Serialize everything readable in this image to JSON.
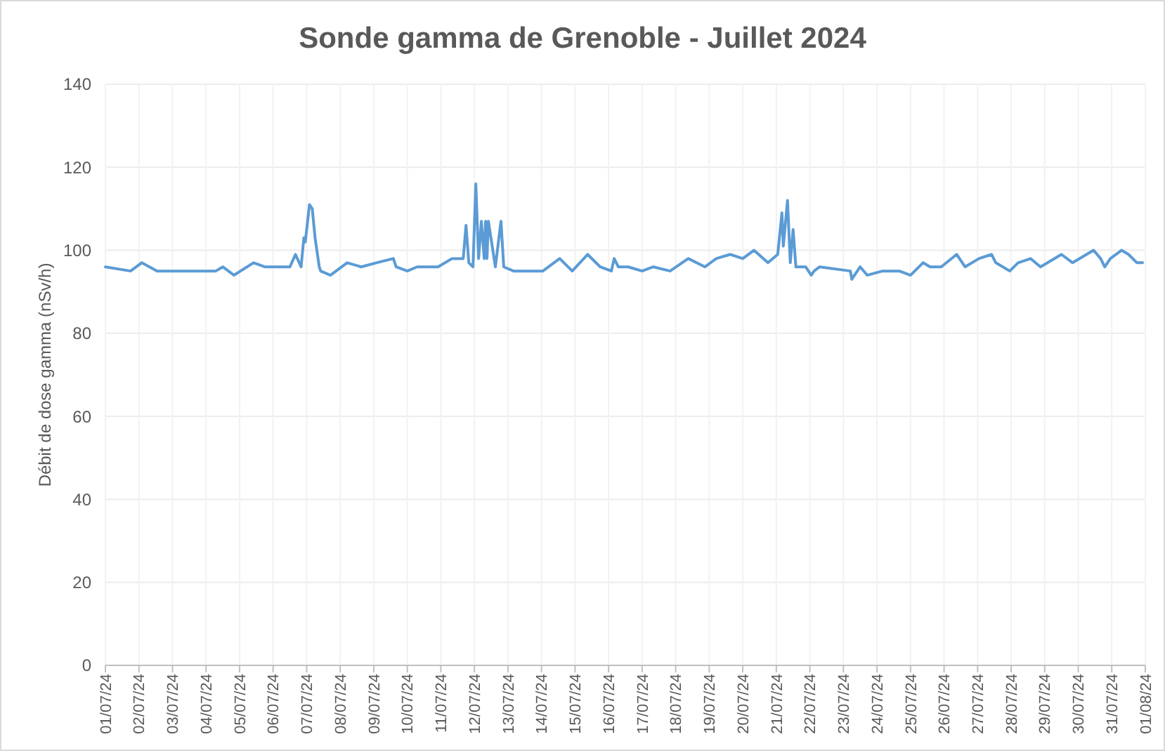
{
  "chart_data": {
    "type": "line",
    "title": "Sonde gamma de Grenoble - Juillet 2024",
    "ylabel": "Débit de dose gamma (nSv/h)",
    "x": [
      "2024-07-01T00:00",
      "2024-07-01T18:00",
      "2024-07-02T02:00",
      "2024-07-02T13:00",
      "2024-07-03T07:00",
      "2024-07-03T17:00",
      "2024-07-04T07:00",
      "2024-07-04T12:00",
      "2024-07-04T20:00",
      "2024-07-05T10:00",
      "2024-07-05T18:00",
      "2024-07-06T02:00",
      "2024-07-06T09:00",
      "2024-07-06T12:00",
      "2024-07-06T16:00",
      "2024-07-06T20:00",
      "2024-07-06T22:00",
      "2024-07-06T23:00",
      "2024-07-07T02:00",
      "2024-07-07T04:00",
      "2024-07-07T06:00",
      "2024-07-07T09:00",
      "2024-07-07T10:00",
      "2024-07-07T17:00",
      "2024-07-08T05:00",
      "2024-07-08T15:00",
      "2024-07-09T02:00",
      "2024-07-09T14:00",
      "2024-07-09T16:00",
      "2024-07-10T00:00",
      "2024-07-10T07:00",
      "2024-07-10T22:00",
      "2024-07-11T08:00",
      "2024-07-11T16:00",
      "2024-07-11T18:00",
      "2024-07-11T20:00",
      "2024-07-11T23:00",
      "2024-07-12T01:00",
      "2024-07-12T03:00",
      "2024-07-12T05:00",
      "2024-07-12T07:00",
      "2024-07-12T08:00",
      "2024-07-12T09:00",
      "2024-07-12T10:00",
      "2024-07-12T15:00",
      "2024-07-12T19:00",
      "2024-07-12T21:00",
      "2024-07-13T04:00",
      "2024-07-13T12:00",
      "2024-07-13T17:00",
      "2024-07-14T01:00",
      "2024-07-14T13:00",
      "2024-07-14T22:00",
      "2024-07-15T09:00",
      "2024-07-15T18:00",
      "2024-07-16T02:00",
      "2024-07-16T04:00",
      "2024-07-16T07:00",
      "2024-07-16T14:00",
      "2024-07-17T00:00",
      "2024-07-17T08:00",
      "2024-07-17T20:00",
      "2024-07-18T09:00",
      "2024-07-18T21:00",
      "2024-07-19T05:00",
      "2024-07-19T15:00",
      "2024-07-20T00:00",
      "2024-07-20T08:00",
      "2024-07-20T18:00",
      "2024-07-21T01:00",
      "2024-07-21T04:00",
      "2024-07-21T05:00",
      "2024-07-21T08:00",
      "2024-07-21T10:00",
      "2024-07-21T12:00",
      "2024-07-21T14:00",
      "2024-07-21T21:00",
      "2024-07-22T01:00",
      "2024-07-22T03:00",
      "2024-07-22T07:00",
      "2024-07-23T05:00",
      "2024-07-23T06:00",
      "2024-07-23T12:00",
      "2024-07-23T17:00",
      "2024-07-24T04:00",
      "2024-07-24T16:00",
      "2024-07-25T00:00",
      "2024-07-25T09:00",
      "2024-07-25T14:00",
      "2024-07-25T22:00",
      "2024-07-26T09:00",
      "2024-07-26T15:00",
      "2024-07-27T01:00",
      "2024-07-27T10:00",
      "2024-07-27T13:00",
      "2024-07-27T23:00",
      "2024-07-28T05:00",
      "2024-07-28T14:00",
      "2024-07-28T21:00",
      "2024-07-29T12:00",
      "2024-07-29T20:00",
      "2024-07-30T11:00",
      "2024-07-30T16:00",
      "2024-07-30T19:00",
      "2024-07-30T23:00",
      "2024-07-31T07:00",
      "2024-07-31T12:00",
      "2024-07-31T18:00",
      "2024-07-31T22:00"
    ],
    "series": [
      {
        "color": "#5b9bd5",
        "values": [
          96,
          95,
          97,
          95,
          95,
          95,
          95,
          96,
          94,
          97,
          96,
          96,
          96,
          96,
          99,
          96,
          103,
          102,
          111,
          110,
          103,
          96,
          95,
          94,
          97,
          96,
          97,
          98,
          96,
          95,
          96,
          96,
          98,
          98,
          106,
          97,
          96,
          116,
          98,
          107,
          98,
          107,
          98,
          107,
          96,
          107,
          96,
          95,
          95,
          95,
          95,
          98,
          95,
          99,
          96,
          95,
          98,
          96,
          96,
          95,
          96,
          95,
          98,
          96,
          98,
          99,
          98,
          100,
          97,
          99,
          109,
          101,
          112,
          97,
          105,
          96,
          96,
          94,
          95,
          96,
          95,
          93,
          96,
          94,
          95,
          95,
          94,
          97,
          96,
          96,
          99,
          96,
          98,
          99,
          97,
          95,
          97,
          98,
          96,
          99,
          97,
          100,
          98,
          96,
          98,
          100,
          99,
          97,
          97
        ]
      }
    ],
    "xlim": [
      "2024-07-01",
      "2024-08-01"
    ],
    "xticks": [
      {
        "value": "2024-07-01",
        "label": "01/07/24"
      },
      {
        "value": "2024-07-02",
        "label": "02/07/24"
      },
      {
        "value": "2024-07-03",
        "label": "03/07/24"
      },
      {
        "value": "2024-07-04",
        "label": "04/07/24"
      },
      {
        "value": "2024-07-05",
        "label": "05/07/24"
      },
      {
        "value": "2024-07-06",
        "label": "06/07/24"
      },
      {
        "value": "2024-07-07",
        "label": "07/07/24"
      },
      {
        "value": "2024-07-08",
        "label": "08/07/24"
      },
      {
        "value": "2024-07-09",
        "label": "09/07/24"
      },
      {
        "value": "2024-07-10",
        "label": "10/07/24"
      },
      {
        "value": "2024-07-11",
        "label": "11/07/24"
      },
      {
        "value": "2024-07-12",
        "label": "12/07/24"
      },
      {
        "value": "2024-07-13",
        "label": "13/07/24"
      },
      {
        "value": "2024-07-14",
        "label": "14/07/24"
      },
      {
        "value": "2024-07-15",
        "label": "15/07/24"
      },
      {
        "value": "2024-07-16",
        "label": "16/07/24"
      },
      {
        "value": "2024-07-17",
        "label": "17/07/24"
      },
      {
        "value": "2024-07-18",
        "label": "18/07/24"
      },
      {
        "value": "2024-07-19",
        "label": "19/07/24"
      },
      {
        "value": "2024-07-20",
        "label": "20/07/24"
      },
      {
        "value": "2024-07-21",
        "label": "21/07/24"
      },
      {
        "value": "2024-07-22",
        "label": "22/07/24"
      },
      {
        "value": "2024-07-23",
        "label": "23/07/24"
      },
      {
        "value": "2024-07-24",
        "label": "24/07/24"
      },
      {
        "value": "2024-07-25",
        "label": "25/07/24"
      },
      {
        "value": "2024-07-26",
        "label": "26/07/24"
      },
      {
        "value": "2024-07-27",
        "label": "27/07/24"
      },
      {
        "value": "2024-07-28",
        "label": "28/07/24"
      },
      {
        "value": "2024-07-29",
        "label": "29/07/24"
      },
      {
        "value": "2024-07-30",
        "label": "30/07/24"
      },
      {
        "value": "2024-07-31",
        "label": "31/07/24"
      },
      {
        "value": "2024-08-01",
        "label": "01/08/24"
      }
    ],
    "ylim": [
      0,
      140
    ],
    "yticks": [
      0,
      20,
      40,
      60,
      80,
      100,
      120,
      140
    ],
    "grid": true
  }
}
